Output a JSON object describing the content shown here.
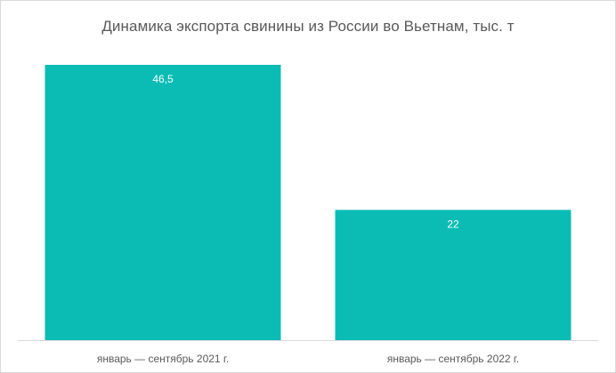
{
  "chart_data": {
    "type": "bar",
    "title": "Динамика экспорта свинины из России во Вьетнам, тыс. т",
    "categories": [
      "январь — сентябрь 2021 г.",
      "январь — сентябрь 2022 г."
    ],
    "values": [
      46.5,
      22
    ],
    "value_labels": [
      "46,5",
      "22"
    ],
    "xlabel": "",
    "ylabel": "",
    "ylim": [
      0,
      46.5
    ],
    "grid": false,
    "legend": "none",
    "bar_color": "#0bbcb5"
  }
}
